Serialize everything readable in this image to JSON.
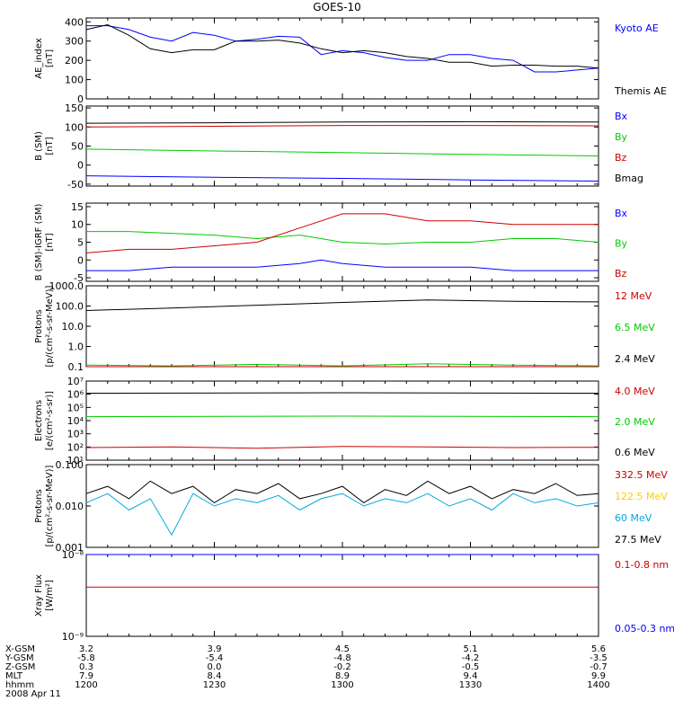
{
  "title": "GOES-10",
  "footer": {
    "rows": [
      {
        "label": "X-GSM",
        "values": [
          "3.2",
          "3.9",
          "4.5",
          "5.1",
          "5.6"
        ]
      },
      {
        "label": "Y-GSM",
        "values": [
          "-5.8",
          "-5.4",
          "-4.8",
          "-4.2",
          "-3.5"
        ]
      },
      {
        "label": "Z-GSM",
        "values": [
          "0.3",
          "0.0",
          "-0.2",
          "-0.5",
          "-0.7"
        ]
      },
      {
        "label": "MLT",
        "values": [
          "7.9",
          "8.4",
          "8.9",
          "9.4",
          "9.9"
        ]
      },
      {
        "label": "hhmm",
        "values": [
          "1200",
          "1230",
          "1300",
          "1330",
          "1400"
        ]
      }
    ],
    "date": "2008 Apr 11"
  },
  "chart_data": [
    {
      "type": "line",
      "ylabel": "AE_index\n[nT]",
      "ylim": [
        0,
        420
      ],
      "yticks": [
        0,
        100,
        200,
        300,
        400
      ],
      "ytick_labels": [
        "0",
        "100",
        "200",
        "300",
        "400"
      ],
      "series": [
        {
          "name": "Kyoto AE",
          "color": "#0000ff",
          "label_color": "#0000ff",
          "x": [
            0,
            5,
            10,
            15,
            20,
            25,
            30,
            35,
            40,
            45,
            50,
            55,
            60,
            65,
            70,
            75,
            80,
            85,
            90,
            95,
            100,
            105,
            110,
            115,
            120
          ],
          "y": [
            380,
            380,
            360,
            320,
            300,
            345,
            330,
            300,
            310,
            325,
            320,
            230,
            250,
            240,
            215,
            200,
            200,
            230,
            230,
            210,
            200,
            140,
            140,
            150,
            160
          ]
        },
        {
          "name": "Themis AE",
          "color": "#000000",
          "label_color": "#000000",
          "x": [
            0,
            5,
            10,
            15,
            20,
            25,
            30,
            35,
            40,
            45,
            50,
            55,
            60,
            65,
            70,
            75,
            80,
            85,
            90,
            95,
            100,
            105,
            110,
            115,
            120
          ],
          "y": [
            360,
            385,
            330,
            260,
            240,
            255,
            255,
            300,
            300,
            305,
            290,
            260,
            240,
            250,
            240,
            220,
            210,
            190,
            190,
            170,
            175,
            175,
            170,
            170,
            160
          ]
        }
      ]
    },
    {
      "type": "line",
      "ylabel": "B (SM)\n[nT]",
      "ylim": [
        -55,
        155
      ],
      "yticks": [
        -50,
        0,
        50,
        100,
        150
      ],
      "ytick_labels": [
        "-50",
        "0",
        "50",
        "100",
        "150"
      ],
      "series": [
        {
          "name": "Bx",
          "color": "#000000",
          "label_color": "#0000ff",
          "x": [
            0,
            30,
            60,
            90,
            120
          ],
          "y": [
            110,
            111,
            113,
            114,
            113
          ]
        },
        {
          "name": "By",
          "color": "#cc0000",
          "label_color": "#00cc00",
          "x": [
            0,
            30,
            60,
            90,
            120
          ],
          "y": [
            100,
            102,
            104,
            104,
            103
          ]
        },
        {
          "name": "Bz",
          "color": "#00cc00",
          "label_color": "#cc0000",
          "x": [
            0,
            30,
            60,
            90,
            120
          ],
          "y": [
            42,
            37,
            33,
            28,
            24
          ]
        },
        {
          "name": "Bmag",
          "color": "#0000ff",
          "label_color": "#000000",
          "x": [
            0,
            30,
            60,
            90,
            120
          ],
          "y": [
            -28,
            -32,
            -35,
            -39,
            -42
          ]
        }
      ]
    },
    {
      "type": "line",
      "ylabel": "B (SM)-IGRF (SM)\n[nT]",
      "ylim": [
        -6,
        16
      ],
      "yticks": [
        -5,
        0,
        5,
        10,
        15
      ],
      "ytick_labels": [
        "-5",
        "0",
        "5",
        "10",
        "15"
      ],
      "series": [
        {
          "name": "Bx",
          "color": "#0000ff",
          "label_color": "#0000ff",
          "x": [
            0,
            10,
            20,
            30,
            40,
            50,
            55,
            60,
            70,
            80,
            90,
            100,
            110,
            120
          ],
          "y": [
            -3,
            -3,
            -2,
            -2,
            -2,
            -1,
            0,
            -1,
            -2,
            -2,
            -2,
            -3,
            -3,
            -3
          ]
        },
        {
          "name": "By",
          "color": "#00cc00",
          "label_color": "#00cc00",
          "x": [
            0,
            10,
            20,
            30,
            40,
            50,
            55,
            60,
            70,
            80,
            90,
            100,
            110,
            120
          ],
          "y": [
            8,
            8,
            7.5,
            7,
            6,
            7,
            6,
            5,
            4.5,
            5,
            5,
            6,
            6,
            5
          ]
        },
        {
          "name": "Bz",
          "color": "#cc0000",
          "label_color": "#cc0000",
          "x": [
            0,
            10,
            20,
            30,
            40,
            50,
            55,
            60,
            70,
            80,
            90,
            100,
            110,
            120
          ],
          "y": [
            2,
            3,
            3,
            4,
            5,
            9,
            11,
            13,
            13,
            11,
            11,
            10,
            10,
            10
          ]
        }
      ]
    },
    {
      "type": "line",
      "ylabel": "Protons\n[p/(cm²-s-sr-MeV)]",
      "yscale": "log",
      "ylim": [
        0.1,
        1000
      ],
      "yticks": [
        0.1,
        1,
        10,
        100,
        1000
      ],
      "ytick_labels": [
        "0.1",
        "1.0",
        "10.0",
        "100.0",
        "1000.0"
      ],
      "series": [
        {
          "name": "12 MeV",
          "color": "#000000",
          "label_color": "#cc0000",
          "x": [
            0,
            20,
            40,
            60,
            80,
            100,
            120
          ],
          "y": [
            60,
            80,
            110,
            150,
            200,
            170,
            160
          ]
        },
        {
          "name": "6.5 MeV",
          "color": "#00cc00",
          "label_color": "#00cc00",
          "x": [
            0,
            20,
            40,
            60,
            80,
            100,
            120
          ],
          "y": [
            0.12,
            0.11,
            0.13,
            0.11,
            0.14,
            0.12,
            0.11
          ]
        },
        {
          "name": "2.4 MeV",
          "color": "#cc0000",
          "label_color": "#000000",
          "x": [
            0,
            20,
            40,
            60,
            80,
            100,
            120
          ],
          "y": [
            0.1,
            0.1,
            0.1,
            0.1,
            0.1,
            0.1,
            0.1
          ]
        }
      ]
    },
    {
      "type": "line",
      "ylabel": "Electrons\n[e/(cm²-s-sr)]",
      "yscale": "log",
      "ylim": [
        10,
        10000000
      ],
      "yticks": [
        10,
        100,
        1000,
        10000,
        100000,
        1000000,
        10000000
      ],
      "ytick_labels": [
        "10¹",
        "10²",
        "10³",
        "10⁴",
        "10⁵",
        "10⁶",
        "10⁷"
      ],
      "series": [
        {
          "name": "4.0 MeV",
          "color": "#000000",
          "label_color": "#cc0000",
          "x": [
            0,
            60,
            120
          ],
          "y": [
            1200000,
            1300000,
            1200000
          ]
        },
        {
          "name": "2.0 MeV",
          "color": "#00cc00",
          "label_color": "#00cc00",
          "x": [
            0,
            60,
            120
          ],
          "y": [
            20000,
            22000,
            20000
          ]
        },
        {
          "name": "0.6 MeV",
          "color": "#cc0000",
          "label_color": "#000000",
          "x": [
            0,
            20,
            40,
            60,
            80,
            100,
            120
          ],
          "y": [
            90,
            100,
            80,
            110,
            100,
            90,
            95
          ]
        }
      ]
    },
    {
      "type": "line",
      "ylabel": "Protons\n[p/(cm²-s-sr-MeV)]",
      "yscale": "log",
      "ylim": [
        0.001,
        0.1
      ],
      "yticks": [
        0.001,
        0.01,
        0.1
      ],
      "ytick_labels": [
        "0.001",
        "0.010",
        "0.100"
      ],
      "series": [
        {
          "name": "332.5 MeV",
          "color": "#000000",
          "label_color": "#cc0000",
          "x": [
            0,
            5,
            10,
            15,
            20,
            25,
            30,
            35,
            40,
            45,
            50,
            55,
            60,
            65,
            70,
            75,
            80,
            85,
            90,
            95,
            100,
            105,
            110,
            115,
            120
          ],
          "y": [
            0.02,
            0.03,
            0.015,
            0.04,
            0.02,
            0.03,
            0.012,
            0.025,
            0.02,
            0.035,
            0.015,
            0.02,
            0.03,
            0.012,
            0.025,
            0.018,
            0.04,
            0.02,
            0.03,
            0.015,
            0.025,
            0.02,
            0.035,
            0.018,
            0.02
          ]
        },
        {
          "name": "122.5 MeV",
          "color": "#ffcc00",
          "label_color": "#ffcc00",
          "x": [],
          "y": []
        },
        {
          "name": "60 MeV",
          "color": "#00aadd",
          "label_color": "#00aadd",
          "x": [
            0,
            5,
            10,
            15,
            20,
            25,
            30,
            35,
            40,
            45,
            50,
            55,
            60,
            65,
            70,
            75,
            80,
            85,
            90,
            95,
            100,
            105,
            110,
            115,
            120
          ],
          "y": [
            0.012,
            0.02,
            0.008,
            0.015,
            0.002,
            0.02,
            0.01,
            0.015,
            0.012,
            0.018,
            0.008,
            0.015,
            0.02,
            0.01,
            0.015,
            0.012,
            0.02,
            0.01,
            0.015,
            0.008,
            0.02,
            0.012,
            0.015,
            0.01,
            0.012
          ]
        },
        {
          "name": "27.5 MeV",
          "color": "#000000",
          "label_color": "#000000",
          "x": [],
          "y": []
        }
      ]
    },
    {
      "type": "line",
      "ylabel": "Xray Flux\n[W/m²]",
      "yscale": "log",
      "ylim": [
        1e-09,
        1e-08
      ],
      "yticks": [
        1e-09,
        1e-08
      ],
      "ytick_labels": [
        "10⁻⁹",
        "10⁻⁸"
      ],
      "series": [
        {
          "name": "0.1-0.8 nm",
          "color": "#cc0000",
          "label_color": "#cc0000",
          "x": [
            0,
            120
          ],
          "y": [
            4e-09,
            4e-09
          ]
        },
        {
          "name": "0.05-0.3 nm",
          "color": "#0000ff",
          "label_color": "#0000ff",
          "x": [
            0,
            120
          ],
          "y": [
            1e-08,
            1e-08
          ]
        }
      ]
    }
  ]
}
